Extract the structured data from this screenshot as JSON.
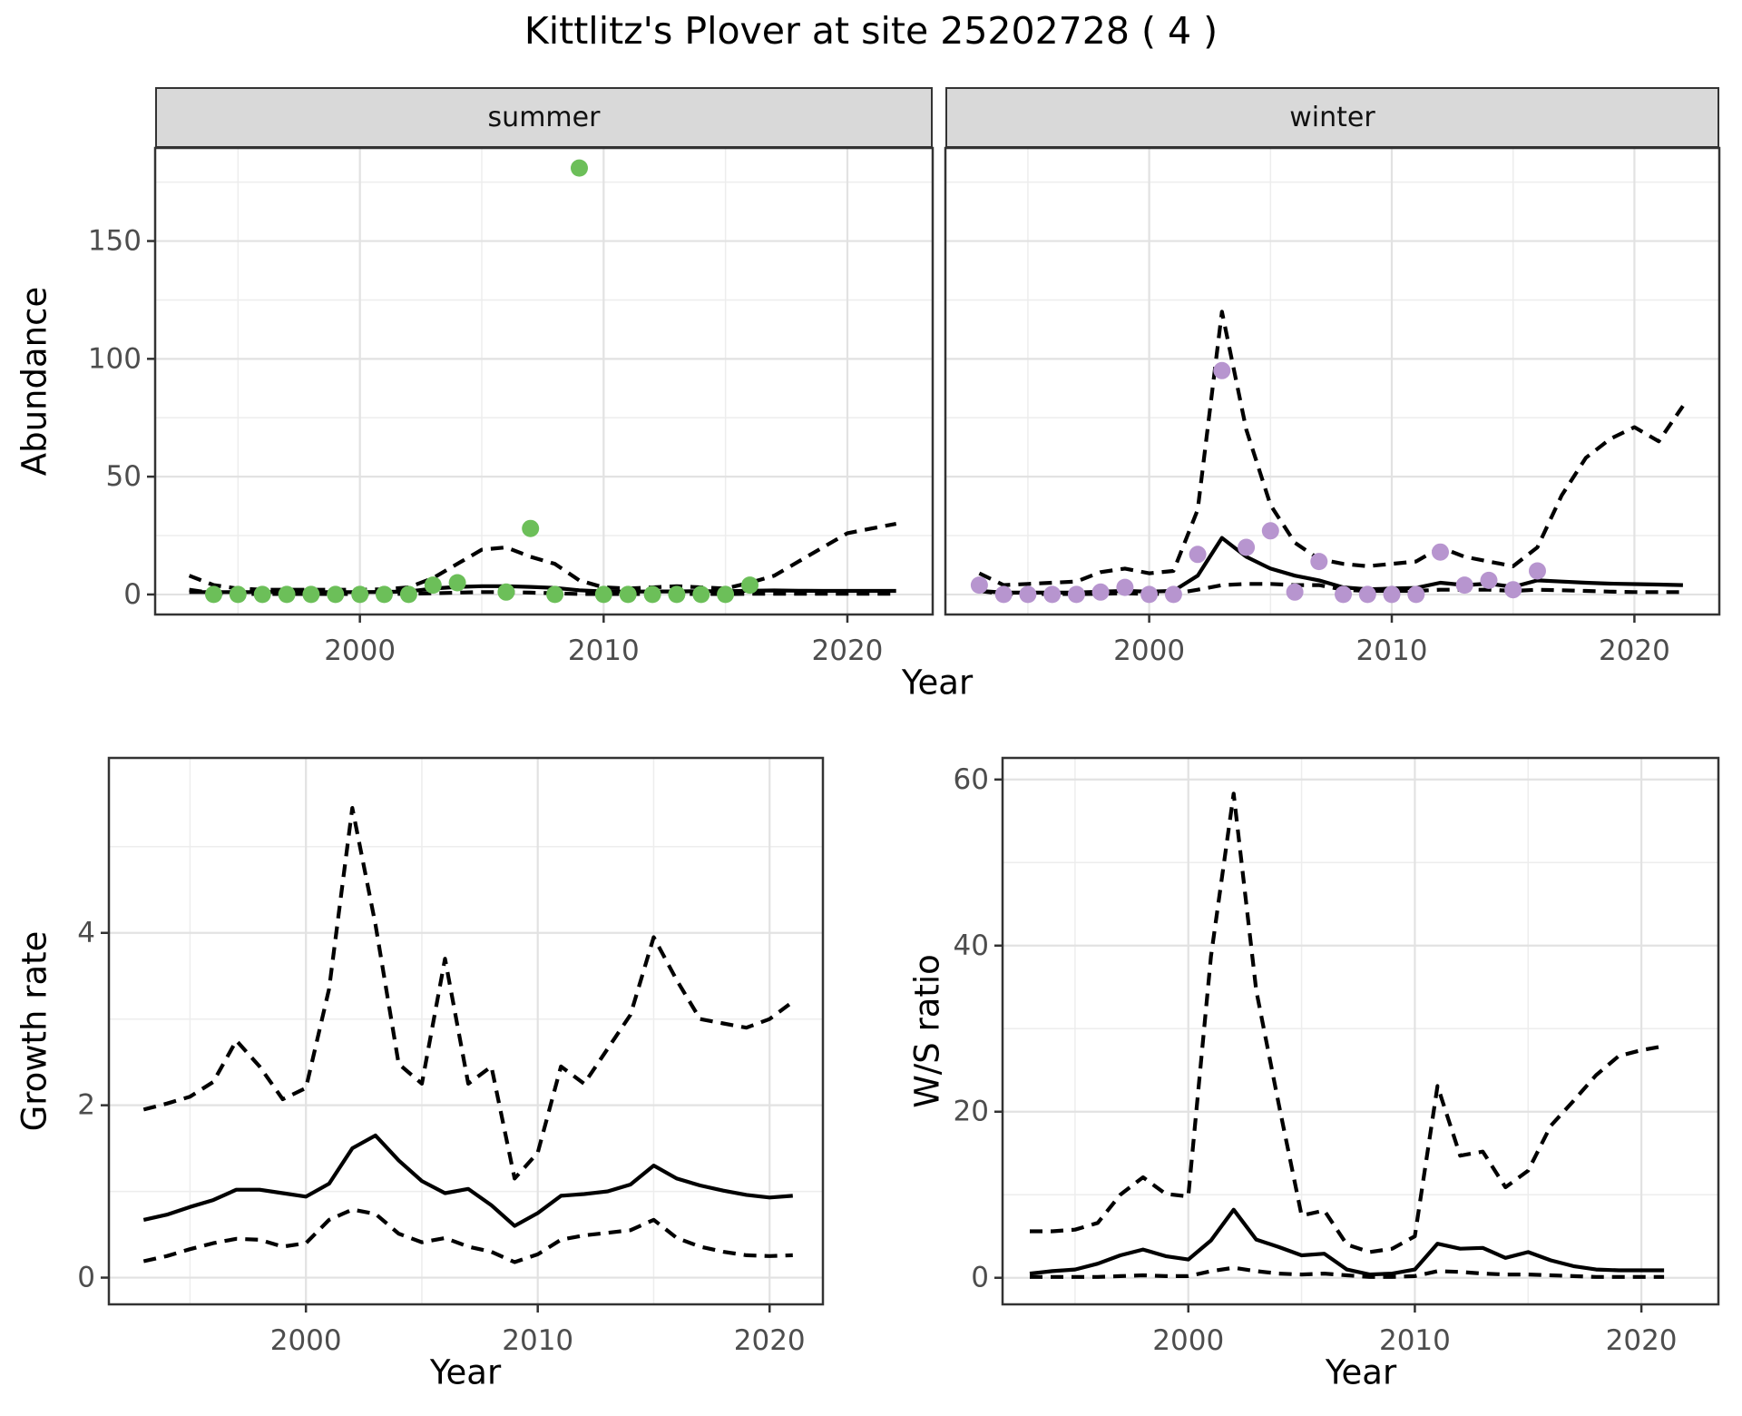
{
  "title": "Kittlitz's Plover at site 25202728 ( 4 )",
  "labels": {
    "y_abundance": "Abundance",
    "x_year_top": "Year",
    "y_growth": "Growth rate",
    "x_year_growth": "Year",
    "y_ws": "W/S ratio",
    "x_year_ws": "Year",
    "facet_summer": "summer",
    "facet_winter": "winter"
  },
  "colors": {
    "summer_points": "#6cbf59",
    "winter_points": "#b795cf",
    "line": "#000000",
    "strip_bg": "#d9d9d9",
    "panel_border": "#333333",
    "grid_major": "#e2e2e2",
    "grid_minor": "#ededed",
    "tick_text": "#4d4d4d"
  },
  "chart_data": [
    {
      "id": "abundance_summer",
      "type": "line",
      "facet_label": "summer",
      "xlabel": "Year",
      "ylabel": "Abundance",
      "xlim": [
        1991.6,
        2023.5
      ],
      "ylim": [
        -8.5,
        189.5
      ],
      "xticks": [
        2000,
        2010,
        2020
      ],
      "xminor": [
        1995,
        2005,
        2015
      ],
      "yticks": [
        0,
        50,
        100,
        150
      ],
      "yminor": [
        25,
        75,
        125,
        175
      ],
      "x": [
        1993,
        1994,
        1995,
        1996,
        1997,
        1998,
        1999,
        2000,
        2001,
        2002,
        2003,
        2004,
        2005,
        2006,
        2007,
        2008,
        2009,
        2010,
        2011,
        2012,
        2013,
        2014,
        2015,
        2016,
        2017,
        2018,
        2019,
        2020,
        2021,
        2022
      ],
      "series": [
        {
          "name": "median",
          "style": "solid",
          "values": [
            1.0,
            1.0,
            1.0,
            1.0,
            1.0,
            1.0,
            1.0,
            1.0,
            1.1,
            1.3,
            2.5,
            3.2,
            3.5,
            3.5,
            3.2,
            2.8,
            1.8,
            1.3,
            1.2,
            1.3,
            1.3,
            1.4,
            1.4,
            1.6,
            1.7,
            1.6,
            1.5,
            1.5,
            1.5,
            1.5
          ]
        },
        {
          "name": "upper_ci",
          "style": "dashed",
          "values": [
            8,
            4,
            2.5,
            2,
            2,
            2,
            2,
            2,
            2.2,
            3,
            7,
            13,
            19,
            20,
            16,
            13,
            6,
            3,
            2.5,
            3,
            3.5,
            3,
            2.5,
            5,
            8,
            14,
            20,
            26,
            28,
            30
          ]
        },
        {
          "name": "lower_ci",
          "style": "dashed",
          "values": [
            2,
            0.5,
            0.2,
            0.2,
            0.2,
            0.2,
            0.2,
            0.2,
            0.2,
            0.3,
            0.5,
            0.8,
            1,
            1,
            0.8,
            0.5,
            0.2,
            0.2,
            0.2,
            0.2,
            0.2,
            0.2,
            0.2,
            0.3,
            0.3,
            0.3,
            0.3,
            0.3,
            0.3,
            0.3
          ]
        }
      ],
      "points": {
        "color": "#6cbf59",
        "data": [
          [
            1994,
            0
          ],
          [
            1995,
            0
          ],
          [
            1996,
            0
          ],
          [
            1997,
            0
          ],
          [
            1998,
            0
          ],
          [
            1999,
            0
          ],
          [
            2000,
            0
          ],
          [
            2001,
            0
          ],
          [
            2002,
            0
          ],
          [
            2003,
            4
          ],
          [
            2004,
            5
          ],
          [
            2006,
            1
          ],
          [
            2007,
            28
          ],
          [
            2008,
            0
          ],
          [
            2009,
            181
          ],
          [
            2010,
            0
          ],
          [
            2011,
            0
          ],
          [
            2012,
            0
          ],
          [
            2013,
            0
          ],
          [
            2014,
            0
          ],
          [
            2015,
            0
          ],
          [
            2016,
            4
          ]
        ]
      }
    },
    {
      "id": "abundance_winter",
      "type": "line",
      "facet_label": "winter",
      "xlabel": "Year",
      "ylabel": "Abundance",
      "xlim": [
        1991.6,
        2023.5
      ],
      "ylim": [
        -8.5,
        189.5
      ],
      "xticks": [
        2000,
        2010,
        2020
      ],
      "xminor": [
        1995,
        2005,
        2015
      ],
      "yticks": [
        0,
        50,
        100,
        150
      ],
      "yminor": [
        25,
        75,
        125,
        175
      ],
      "x": [
        1993,
        1994,
        1995,
        1996,
        1997,
        1998,
        1999,
        2000,
        2001,
        2002,
        2003,
        2004,
        2005,
        2006,
        2007,
        2008,
        2009,
        2010,
        2011,
        2012,
        2013,
        2014,
        2015,
        2016,
        2017,
        2018,
        2019,
        2020,
        2021,
        2022
      ],
      "series": [
        {
          "name": "median",
          "style": "solid",
          "values": [
            1.5,
            0.8,
            0.8,
            0.8,
            0.8,
            1.2,
            1.5,
            1.2,
            1.5,
            8,
            24,
            16,
            11,
            8,
            6,
            3,
            2.2,
            2.5,
            2.8,
            5,
            4,
            4.6,
            3.2,
            6,
            5.5,
            5,
            4.6,
            4.4,
            4.2,
            4
          ]
        },
        {
          "name": "upper_ci",
          "style": "dashed",
          "values": [
            9,
            4,
            4.5,
            5,
            5.5,
            9.5,
            11,
            9,
            10,
            36,
            120,
            70,
            38,
            22,
            15,
            13,
            12,
            13,
            14,
            20,
            16,
            14,
            12,
            20,
            42,
            58,
            66,
            71,
            65,
            80
          ]
        },
        {
          "name": "lower_ci",
          "style": "dashed",
          "values": [
            1.5,
            0.2,
            0.2,
            0.2,
            0.2,
            0.3,
            0.5,
            0.2,
            0.3,
            2,
            4,
            4.5,
            4.5,
            4,
            4,
            2,
            1.5,
            1.5,
            1.5,
            2,
            2,
            2,
            1.5,
            2,
            1.8,
            1.5,
            1.2,
            1,
            1,
            1
          ]
        }
      ],
      "points": {
        "color": "#b795cf",
        "data": [
          [
            1993,
            4
          ],
          [
            1994,
            0
          ],
          [
            1995,
            0
          ],
          [
            1996,
            0
          ],
          [
            1997,
            0
          ],
          [
            1998,
            1
          ],
          [
            1999,
            3
          ],
          [
            2000,
            0
          ],
          [
            2001,
            0
          ],
          [
            2002,
            17
          ],
          [
            2003,
            95
          ],
          [
            2004,
            20
          ],
          [
            2005,
            27
          ],
          [
            2006,
            1
          ],
          [
            2007,
            14
          ],
          [
            2008,
            0
          ],
          [
            2009,
            0
          ],
          [
            2010,
            0
          ],
          [
            2011,
            0
          ],
          [
            2012,
            18
          ],
          [
            2013,
            4
          ],
          [
            2014,
            6
          ],
          [
            2015,
            2
          ],
          [
            2016,
            10
          ]
        ]
      }
    },
    {
      "id": "growth_rate",
      "type": "line",
      "facet_label": null,
      "xlabel": "Year",
      "ylabel": "Growth rate",
      "xlim": [
        1991.5,
        2022.3
      ],
      "ylim": [
        -0.31,
        6.03
      ],
      "xticks": [
        2000,
        2010,
        2020
      ],
      "xminor": [
        1995,
        2005,
        2015
      ],
      "yticks": [
        0,
        2,
        4
      ],
      "yminor": [
        1,
        3,
        5
      ],
      "x": [
        1993,
        1994,
        1995,
        1996,
        1997,
        1998,
        1999,
        2000,
        2001,
        2002,
        2003,
        2004,
        2005,
        2006,
        2007,
        2008,
        2009,
        2010,
        2011,
        2012,
        2013,
        2014,
        2015,
        2016,
        2017,
        2018,
        2019,
        2020,
        2021
      ],
      "series": [
        {
          "name": "mean",
          "style": "solid",
          "values": [
            0.67,
            0.73,
            0.82,
            0.9,
            1.02,
            1.02,
            0.98,
            0.94,
            1.09,
            1.5,
            1.65,
            1.36,
            1.12,
            0.98,
            1.03,
            0.84,
            0.6,
            0.75,
            0.95,
            0.97,
            1.0,
            1.08,
            1.3,
            1.15,
            1.07,
            1.01,
            0.96,
            0.93,
            0.95
          ]
        },
        {
          "name": "upper_ci",
          "style": "dashed",
          "values": [
            1.95,
            2.02,
            2.1,
            2.27,
            2.75,
            2.45,
            2.07,
            2.2,
            3.35,
            5.45,
            4.1,
            2.48,
            2.25,
            3.7,
            2.25,
            2.45,
            1.15,
            1.45,
            2.45,
            2.25,
            2.65,
            3.05,
            3.95,
            3.45,
            3.0,
            2.95,
            2.9,
            3.0,
            3.2
          ]
        },
        {
          "name": "lower_ci",
          "style": "dashed",
          "values": [
            0.19,
            0.25,
            0.33,
            0.4,
            0.45,
            0.44,
            0.36,
            0.4,
            0.67,
            0.79,
            0.74,
            0.51,
            0.41,
            0.46,
            0.36,
            0.3,
            0.18,
            0.27,
            0.44,
            0.49,
            0.52,
            0.55,
            0.67,
            0.46,
            0.36,
            0.3,
            0.26,
            0.25,
            0.26
          ]
        }
      ],
      "points": null
    },
    {
      "id": "ws_ratio",
      "type": "line",
      "facet_label": null,
      "xlabel": "Year",
      "ylabel": "W/S ratio",
      "xlim": [
        1991.8,
        2023.4
      ],
      "ylim": [
        -3.2,
        62.6
      ],
      "xticks": [
        2000,
        2010,
        2020
      ],
      "xminor": [
        1995,
        2005,
        2015
      ],
      "yticks": [
        0,
        20,
        40,
        60
      ],
      "yminor": [
        10,
        30,
        50
      ],
      "x": [
        1993,
        1994,
        1995,
        1996,
        1997,
        1998,
        1999,
        2000,
        2001,
        2002,
        2003,
        2004,
        2005,
        2006,
        2007,
        2008,
        2009,
        2010,
        2011,
        2012,
        2013,
        2014,
        2015,
        2016,
        2017,
        2018,
        2019,
        2020,
        2021
      ],
      "series": [
        {
          "name": "mean",
          "style": "solid",
          "values": [
            0.5,
            0.8,
            1.0,
            1.7,
            2.7,
            3.4,
            2.6,
            2.2,
            4.5,
            8.2,
            4.6,
            3.7,
            2.7,
            2.9,
            1.0,
            0.4,
            0.5,
            1.0,
            4.1,
            3.5,
            3.6,
            2.4,
            3.1,
            2.1,
            1.4,
            1.0,
            0.9,
            0.9,
            0.9
          ]
        },
        {
          "name": "upper_ci",
          "style": "dashed",
          "values": [
            5.6,
            5.6,
            5.8,
            6.6,
            10.0,
            12.1,
            10.1,
            9.8,
            38.7,
            58.3,
            34.6,
            20.8,
            7.5,
            8.1,
            4.0,
            3.1,
            3.5,
            5.0,
            23.1,
            14.7,
            15.2,
            10.9,
            12.9,
            18.3,
            21.3,
            24.4,
            26.7,
            27.4,
            27.9
          ]
        },
        {
          "name": "lower_ci",
          "style": "dashed",
          "values": [
            0.1,
            0.1,
            0.1,
            0.1,
            0.2,
            0.3,
            0.2,
            0.2,
            0.8,
            1.2,
            0.8,
            0.5,
            0.4,
            0.5,
            0.3,
            0.1,
            0.1,
            0.2,
            0.8,
            0.7,
            0.5,
            0.4,
            0.4,
            0.3,
            0.2,
            0.1,
            0.1,
            0.1,
            0.1
          ]
        }
      ],
      "points": null
    }
  ]
}
